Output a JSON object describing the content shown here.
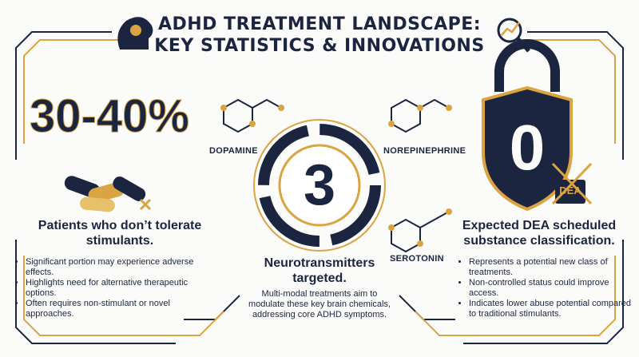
{
  "header": {
    "title_lines": [
      "ADHD TREATMENT LANDSCAPE:",
      "KEY STATISTICS & INNOVATIONS"
    ]
  },
  "panels": [
    {
      "stat": "30-40%",
      "heading": "Patients who don’t tolerate stimulants.",
      "bullets": [
        "Significant portion may experience adverse effects.",
        "Highlights need for alternative therapeutic options.",
        "Often requires non-stimulant or novel approaches."
      ]
    },
    {
      "stat": "3",
      "labels": [
        "DOPAMINE",
        "NOREPINEPHRINE",
        "SEROTONIN"
      ],
      "heading": "Neurotransmitters targeted.",
      "body": "Multi-modal treatments aim to modulate these key brain chemicals, addressing core ADHD symptoms."
    },
    {
      "stat": "0",
      "badge": "DEA",
      "heading": "Expected DEA scheduled substance classification.",
      "bullets": [
        "Represents a potential new class of treatments.",
        "Non-controlled status could improve access.",
        "Indicates lower abuse potential compared to traditional stimulants."
      ]
    }
  ]
}
